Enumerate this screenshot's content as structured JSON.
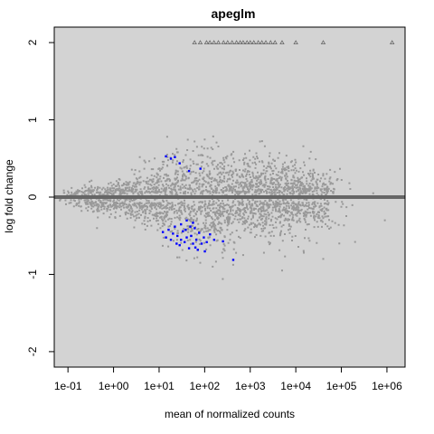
{
  "chart_data": {
    "type": "scatter",
    "title": "apeglm",
    "xlabel": "mean of normalized counts",
    "ylabel": "log fold change",
    "x_scale": "log10",
    "xlim": [
      0.05,
      2500000
    ],
    "ylim": [
      -2.2,
      2.2
    ],
    "x_ticks": [
      0.1,
      1,
      10,
      100,
      1000,
      10000,
      100000,
      1000000
    ],
    "x_tick_labels": [
      "1e-01",
      "1e+00",
      "1e+01",
      "1e+02",
      "1e+03",
      "1e+04",
      "1e+05",
      "1e+06"
    ],
    "y_ticks": [
      -2,
      -1,
      0,
      1,
      2
    ],
    "y_tick_labels": [
      "-2",
      "-1",
      "0",
      "1",
      "2"
    ],
    "grid": false,
    "horizontal_line": 0,
    "colors": {
      "non_significant": "#999999",
      "significant": "#0000ff",
      "zero_line": "#666666",
      "plot_background": "#d3d3d3",
      "clipped_marker": "#666666"
    },
    "series": [
      {
        "values": [
          [
            0.12,
            0.06
          ],
          [
            0.2,
            0.07
          ],
          [
            0.35,
            0.09
          ],
          [
            0.6,
            0.12
          ],
          [
            0.6,
            -0.1
          ],
          [
            0.3,
            -0.07
          ],
          [
            0.25,
            -0.09
          ],
          [
            3,
            0.35
          ],
          [
            5,
            0.45
          ],
          [
            8,
            0.5
          ],
          [
            15,
            0.55
          ],
          [
            25,
            0.58
          ],
          [
            60,
            0.72
          ],
          [
            150,
            0.62
          ],
          [
            300,
            0.5
          ],
          [
            700,
            0.48
          ],
          [
            2000,
            0.4
          ],
          [
            5000,
            0.36
          ],
          [
            10000,
            0.45
          ],
          [
            20000,
            0.5
          ],
          [
            40000,
            0.3
          ],
          [
            80000,
            0.22
          ],
          [
            150000,
            0.18
          ],
          [
            500000,
            0.05
          ],
          [
            3,
            -0.3
          ],
          [
            5,
            -0.42
          ],
          [
            12,
            -0.63
          ],
          [
            25,
            -0.78
          ],
          [
            40,
            -0.82
          ],
          [
            80,
            -0.85
          ],
          [
            150,
            -0.9
          ],
          [
            250,
            -1.06
          ],
          [
            700,
            -0.75
          ],
          [
            2000,
            -0.72
          ],
          [
            5000,
            -0.95
          ],
          [
            15000,
            -0.72
          ],
          [
            40000,
            -0.8
          ],
          [
            90000,
            -0.6
          ],
          [
            200000,
            -0.58
          ],
          [
            900000,
            -0.3
          ]
        ]
      },
      {
        "values": [
          [
            14,
            0.53
          ],
          [
            18,
            0.5
          ],
          [
            22,
            0.52
          ],
          [
            28,
            0.44
          ],
          [
            45,
            0.34
          ],
          [
            80,
            0.37
          ],
          [
            12,
            -0.45
          ],
          [
            14,
            -0.52
          ],
          [
            16,
            -0.42
          ],
          [
            18,
            -0.55
          ],
          [
            20,
            -0.47
          ],
          [
            22,
            -0.38
          ],
          [
            25,
            -0.5
          ],
          [
            28,
            -0.62
          ],
          [
            30,
            -0.55
          ],
          [
            33,
            -0.44
          ],
          [
            36,
            -0.58
          ],
          [
            40,
            -0.52
          ],
          [
            45,
            -0.66
          ],
          [
            50,
            -0.5
          ],
          [
            55,
            -0.6
          ],
          [
            60,
            -0.4
          ],
          [
            65,
            -0.55
          ],
          [
            75,
            -0.46
          ],
          [
            85,
            -0.6
          ],
          [
            95,
            -0.52
          ],
          [
            110,
            -0.58
          ],
          [
            130,
            -0.48
          ],
          [
            160,
            -0.55
          ],
          [
            30,
            -0.35
          ],
          [
            40,
            -0.3
          ],
          [
            55,
            -0.33
          ],
          [
            70,
            -0.68
          ],
          [
            100,
            -0.7
          ],
          [
            250,
            -0.57
          ],
          [
            420,
            -0.81
          ],
          [
            24,
            -0.6
          ],
          [
            38,
            -0.42
          ],
          [
            48,
            -0.38
          ],
          [
            62,
            -0.65
          ]
        ]
      },
      {
        "values": [
          [
            60,
            2
          ],
          [
            80,
            2
          ],
          [
            110,
            2
          ],
          [
            130,
            2
          ],
          [
            160,
            2
          ],
          [
            200,
            2
          ],
          [
            260,
            2
          ],
          [
            320,
            2
          ],
          [
            400,
            2
          ],
          [
            500,
            2
          ],
          [
            600,
            2
          ],
          [
            700,
            2
          ],
          [
            850,
            2
          ],
          [
            1000,
            2
          ],
          [
            1200,
            2
          ],
          [
            1500,
            2
          ],
          [
            1800,
            2
          ],
          [
            2200,
            2
          ],
          [
            2800,
            2
          ],
          [
            3500,
            2
          ],
          [
            5000,
            2
          ],
          [
            10000,
            2
          ],
          [
            40000,
            2
          ],
          [
            1300000,
            2
          ]
        ]
      }
    ]
  }
}
